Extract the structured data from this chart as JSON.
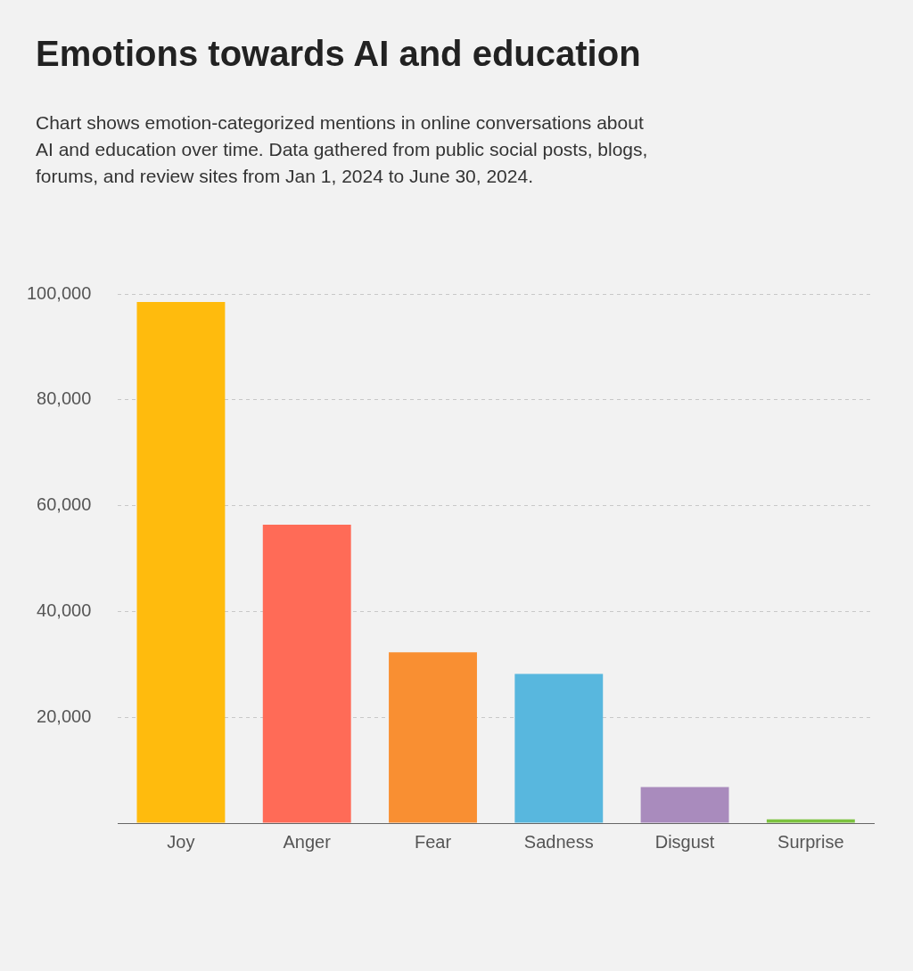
{
  "chart_data": {
    "type": "bar",
    "title": "Emotions towards AI and education",
    "subtitle": "Chart shows emotion-categorized mentions in online conversations about AI and education over time. Data gathered from public social posts, blogs, forums, and review sites from Jan 1, 2024 to June 30, 2024.",
    "categories": [
      "Joy",
      "Anger",
      "Fear",
      "Sadness",
      "Disgust",
      "Surprise"
    ],
    "values": [
      98500,
      56400,
      32300,
      28200,
      6800,
      700
    ],
    "colors": [
      "#ffbb0d",
      "#ff6b57",
      "#f98f32",
      "#58b7de",
      "#a98bbd",
      "#7cc23f"
    ],
    "ylim": [
      0,
      100000
    ],
    "yticks": [
      {
        "value": 0,
        "label": null
      },
      {
        "value": 20000,
        "label": "20,000"
      },
      {
        "value": 40000,
        "label": "40,000"
      },
      {
        "value": 60000,
        "label": "60,000"
      },
      {
        "value": 80000,
        "label": "80,000"
      },
      {
        "value": 100000,
        "label": "100,000"
      }
    ],
    "grid": "y",
    "legend": false
  }
}
